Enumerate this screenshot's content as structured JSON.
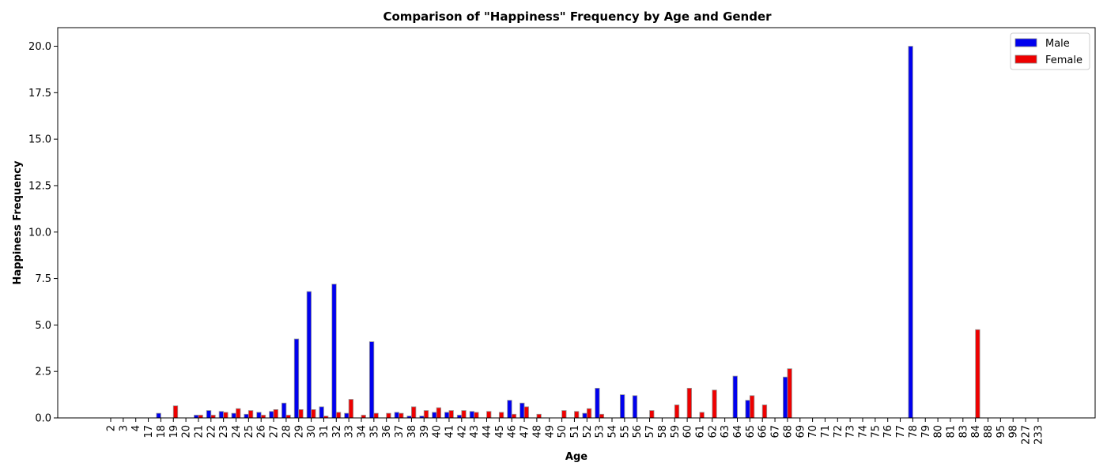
{
  "chart_data": {
    "type": "bar",
    "title": "Comparison of \"Happiness\" Frequency by Age and Gender",
    "xlabel": "Age",
    "ylabel": "Happiness Frequency",
    "ylim": [
      0,
      21
    ],
    "yticks": [
      "0.0",
      "2.5",
      "5.0",
      "7.5",
      "10.0",
      "12.5",
      "15.0",
      "17.5",
      "20.0"
    ],
    "legend_position": "top-right",
    "categories": [
      "2",
      "3",
      "4",
      "17",
      "18",
      "19",
      "20",
      "21",
      "22",
      "23",
      "24",
      "25",
      "26",
      "27",
      "28",
      "29",
      "30",
      "31",
      "32",
      "33",
      "34",
      "35",
      "36",
      "37",
      "38",
      "39",
      "40",
      "41",
      "42",
      "43",
      "44",
      "45",
      "46",
      "47",
      "48",
      "49",
      "50",
      "51",
      "52",
      "53",
      "54",
      "55",
      "56",
      "57",
      "58",
      "59",
      "60",
      "61",
      "62",
      "63",
      "64",
      "65",
      "66",
      "67",
      "68",
      "69",
      "70",
      "71",
      "72",
      "73",
      "74",
      "75",
      "76",
      "77",
      "78",
      "79",
      "80",
      "81",
      "83",
      "84",
      "88",
      "95",
      "98",
      "227",
      "233"
    ],
    "series": [
      {
        "name": "Male",
        "color": "#0000ee",
        "values": [
          0,
          0,
          0,
          0,
          0.25,
          0,
          0,
          0.15,
          0.4,
          0.35,
          0.25,
          0.2,
          0.3,
          0.35,
          0.8,
          4.25,
          6.8,
          0.6,
          7.2,
          0.25,
          0,
          4.1,
          0,
          0.3,
          0.1,
          0.1,
          0.3,
          0.3,
          0.15,
          0.35,
          0,
          0,
          0.95,
          0.8,
          0,
          0,
          0,
          0,
          0.25,
          1.6,
          0,
          1.25,
          1.2,
          0,
          0,
          0,
          0,
          0,
          0,
          0,
          2.25,
          0.95,
          0,
          0,
          2.2,
          0,
          0,
          0,
          0,
          0,
          0,
          0,
          0,
          0,
          20.0,
          0,
          0,
          0,
          0,
          0,
          0,
          0,
          0,
          0,
          0
        ]
      },
      {
        "name": "Female",
        "color": "#ee0000",
        "values": [
          0,
          0,
          0,
          0,
          0,
          0.65,
          0,
          0.15,
          0.15,
          0.3,
          0.5,
          0.4,
          0.15,
          0.45,
          0.15,
          0.45,
          0.45,
          0.1,
          0.3,
          1.0,
          0.15,
          0.25,
          0.25,
          0.25,
          0.6,
          0.4,
          0.55,
          0.4,
          0.4,
          0.3,
          0.35,
          0.3,
          0.2,
          0.6,
          0.2,
          0,
          0.4,
          0.35,
          0.5,
          0.2,
          0,
          0,
          0,
          0.4,
          0,
          0.7,
          1.6,
          0.3,
          1.5,
          0,
          0,
          1.2,
          0.7,
          0,
          2.65,
          0,
          0,
          0,
          0,
          0,
          0,
          0,
          0,
          0,
          0,
          0,
          0,
          0,
          0,
          4.75,
          0,
          0,
          0,
          0,
          0
        ]
      }
    ]
  }
}
